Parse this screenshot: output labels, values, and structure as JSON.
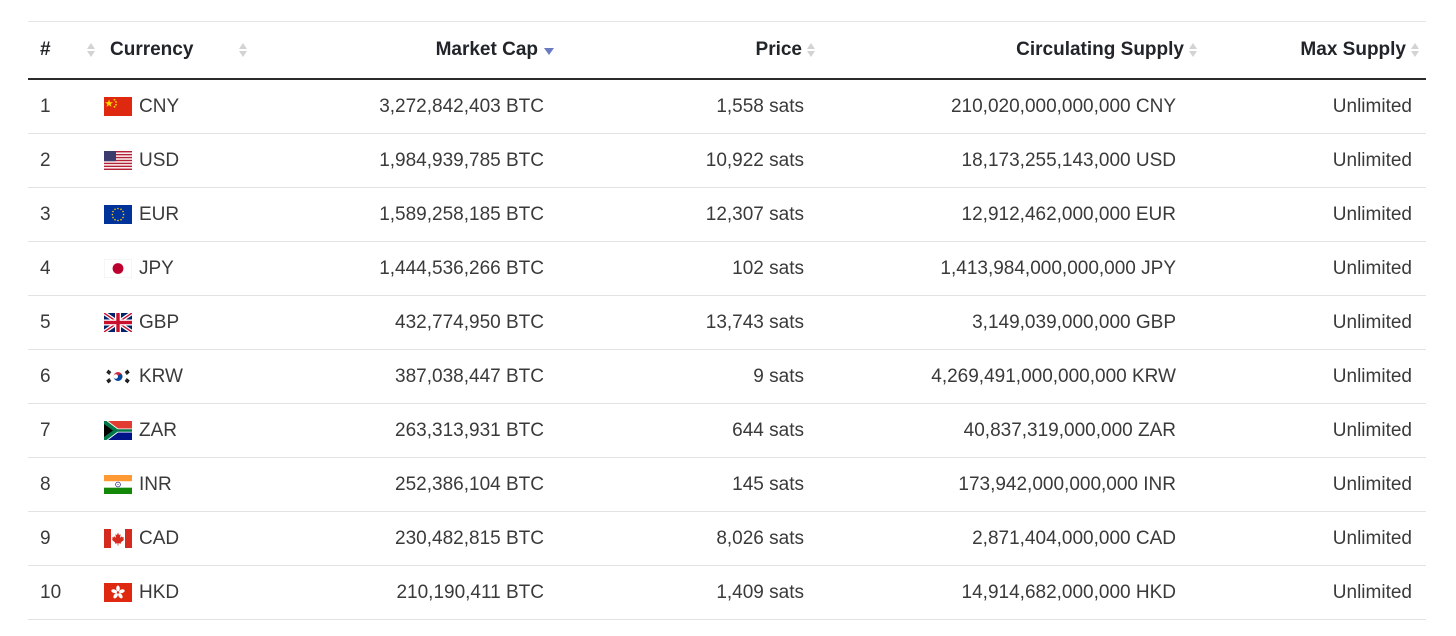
{
  "table": {
    "columns": {
      "rank": "#",
      "currency": "Currency",
      "market_cap": "Market Cap",
      "price": "Price",
      "circulating_supply": "Circulating Supply",
      "max_supply": "Max Supply"
    },
    "sorted_column": "market_cap",
    "sort_direction": "descending",
    "rows": [
      {
        "rank": "1",
        "flag": "china-flag-icon",
        "code": "CNY",
        "market_cap": "3,272,842,403 BTC",
        "price": "1,558 sats",
        "supply": "210,020,000,000,000 CNY",
        "max": "Unlimited"
      },
      {
        "rank": "2",
        "flag": "usa-flag-icon",
        "code": "USD",
        "market_cap": "1,984,939,785 BTC",
        "price": "10,922 sats",
        "supply": "18,173,255,143,000 USD",
        "max": "Unlimited"
      },
      {
        "rank": "3",
        "flag": "eu-flag-icon",
        "code": "EUR",
        "market_cap": "1,589,258,185 BTC",
        "price": "12,307 sats",
        "supply": "12,912,462,000,000 EUR",
        "max": "Unlimited"
      },
      {
        "rank": "4",
        "flag": "japan-flag-icon",
        "code": "JPY",
        "market_cap": "1,444,536,266 BTC",
        "price": "102 sats",
        "supply": "1,413,984,000,000,000 JPY",
        "max": "Unlimited"
      },
      {
        "rank": "5",
        "flag": "uk-flag-icon",
        "code": "GBP",
        "market_cap": "432,774,950 BTC",
        "price": "13,743 sats",
        "supply": "3,149,039,000,000 GBP",
        "max": "Unlimited"
      },
      {
        "rank": "6",
        "flag": "south-korea-flag-icon",
        "code": "KRW",
        "market_cap": "387,038,447 BTC",
        "price": "9 sats",
        "supply": "4,269,491,000,000,000 KRW",
        "max": "Unlimited"
      },
      {
        "rank": "7",
        "flag": "south-africa-flag-icon",
        "code": "ZAR",
        "market_cap": "263,313,931 BTC",
        "price": "644 sats",
        "supply": "40,837,319,000,000 ZAR",
        "max": "Unlimited"
      },
      {
        "rank": "8",
        "flag": "india-flag-icon",
        "code": "INR",
        "market_cap": "252,386,104 BTC",
        "price": "145 sats",
        "supply": "173,942,000,000,000 INR",
        "max": "Unlimited"
      },
      {
        "rank": "9",
        "flag": "canada-flag-icon",
        "code": "CAD",
        "market_cap": "230,482,815 BTC",
        "price": "8,026 sats",
        "supply": "2,871,404,000,000 CAD",
        "max": "Unlimited"
      },
      {
        "rank": "10",
        "flag": "hong-kong-flag-icon",
        "code": "HKD",
        "market_cap": "210,190,411 BTC",
        "price": "1,409 sats",
        "supply": "14,914,682,000,000 HKD",
        "max": "Unlimited"
      }
    ]
  },
  "colors": {
    "header_text": "#212529",
    "cell_text": "#3a3a3a",
    "sort_inactive": "#d3d3d3",
    "sort_active": "#6b7bc2",
    "header_rule": "#2b2b2b",
    "row_rule": "#e3e3e3"
  }
}
